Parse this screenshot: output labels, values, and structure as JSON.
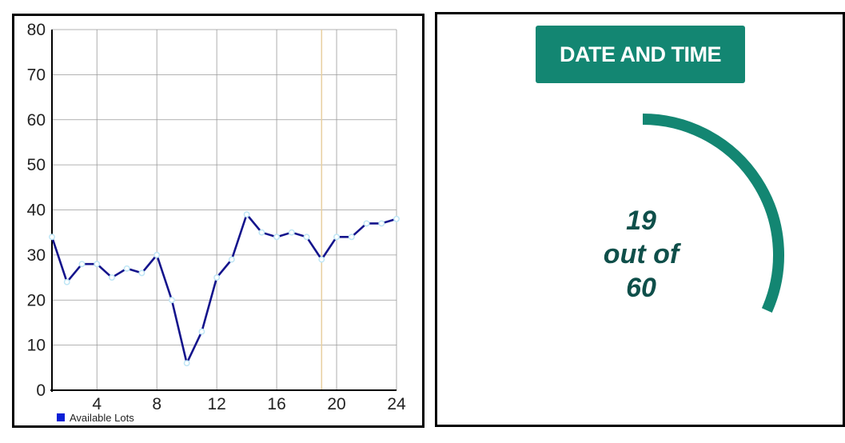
{
  "chart_data": {
    "type": "line",
    "x": [
      1,
      2,
      3,
      4,
      5,
      6,
      7,
      8,
      9,
      10,
      11,
      12,
      13,
      14,
      15,
      16,
      17,
      18,
      19,
      20,
      21,
      22,
      23,
      24
    ],
    "series": [
      {
        "name": "Available Lots",
        "values": [
          34,
          24,
          28,
          28,
          25,
          27,
          26,
          30,
          20,
          6,
          13,
          25,
          29,
          39,
          35,
          34,
          35,
          34,
          29,
          34,
          34,
          37,
          37,
          38
        ]
      }
    ],
    "xlim": [
      1,
      24
    ],
    "ylim": [
      0,
      80
    ],
    "x_ticks": [
      4,
      8,
      12,
      16,
      20,
      24
    ],
    "y_ticks": [
      0,
      10,
      20,
      30,
      40,
      50,
      60,
      70,
      80
    ],
    "highlight_x": 19,
    "grid": true,
    "legend_position": "bottom-left",
    "colors": {
      "line": "#14148c",
      "marker": "#bfe6f5",
      "legend": "#0a1fd6",
      "highlight": "#e8cfa0"
    }
  },
  "datetime_button": {
    "label": "DATE AND TIME"
  },
  "gauge": {
    "value": 19,
    "max": 60,
    "value_text": "19",
    "middle_text": "out of",
    "max_text": "60",
    "color": "#138672",
    "text_color": "#0f4f4a"
  }
}
